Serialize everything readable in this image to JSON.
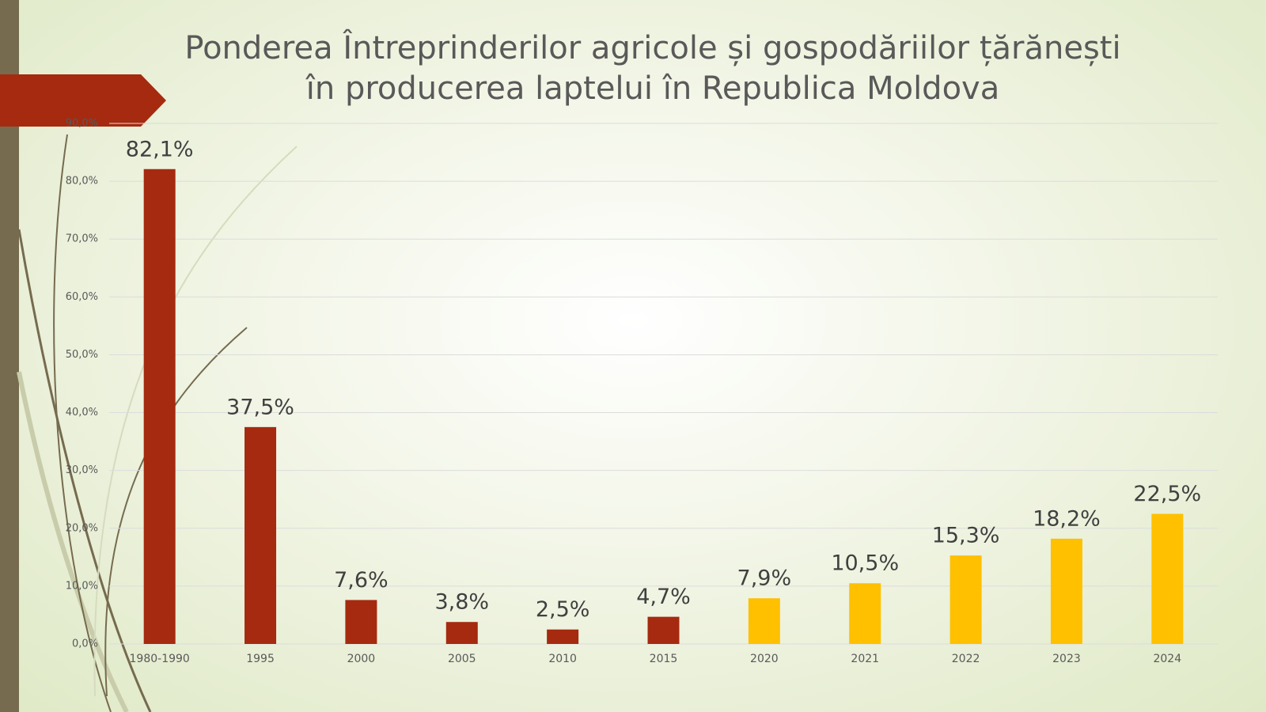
{
  "chart_data": {
    "type": "bar",
    "title": "Ponderea Întreprinderilor agricole și gospodăriilor țărănești în producerea laptelui în Republica Moldova",
    "categories": [
      "1980-1990",
      "1995",
      "2000",
      "2005",
      "2010",
      "2015",
      "2020",
      "2021",
      "2022",
      "2023",
      "2024"
    ],
    "values": [
      82.1,
      37.5,
      7.6,
      3.8,
      2.5,
      4.7,
      7.9,
      10.5,
      15.3,
      18.2,
      22.5
    ],
    "value_labels": [
      "82,1%",
      "37,5%",
      "7,6%",
      "3,8%",
      "2,5%",
      "4,7%",
      "7,9%",
      "10,5%",
      "15,3%",
      "18,2%",
      "22,5%"
    ],
    "colors": [
      "#a52a0f",
      "#a52a0f",
      "#a52a0f",
      "#a52a0f",
      "#a52a0f",
      "#a52a0f",
      "#ffc000",
      "#ffc000",
      "#ffc000",
      "#ffc000",
      "#ffc000"
    ],
    "ylim": [
      0,
      90
    ],
    "yticks": [
      {
        "value": 0,
        "label": "0,0%"
      },
      {
        "value": 10,
        "label": "10,0%"
      },
      {
        "value": 20,
        "label": "20,0%"
      },
      {
        "value": 30,
        "label": "30,0%"
      },
      {
        "value": 40,
        "label": "40,0%"
      },
      {
        "value": 50,
        "label": "50,0%"
      },
      {
        "value": 60,
        "label": "60,0%"
      },
      {
        "value": 70,
        "label": "70,0%"
      },
      {
        "value": 80,
        "label": "80,0%"
      },
      {
        "value": 90,
        "label": "90,0%"
      }
    ],
    "grid": true
  }
}
